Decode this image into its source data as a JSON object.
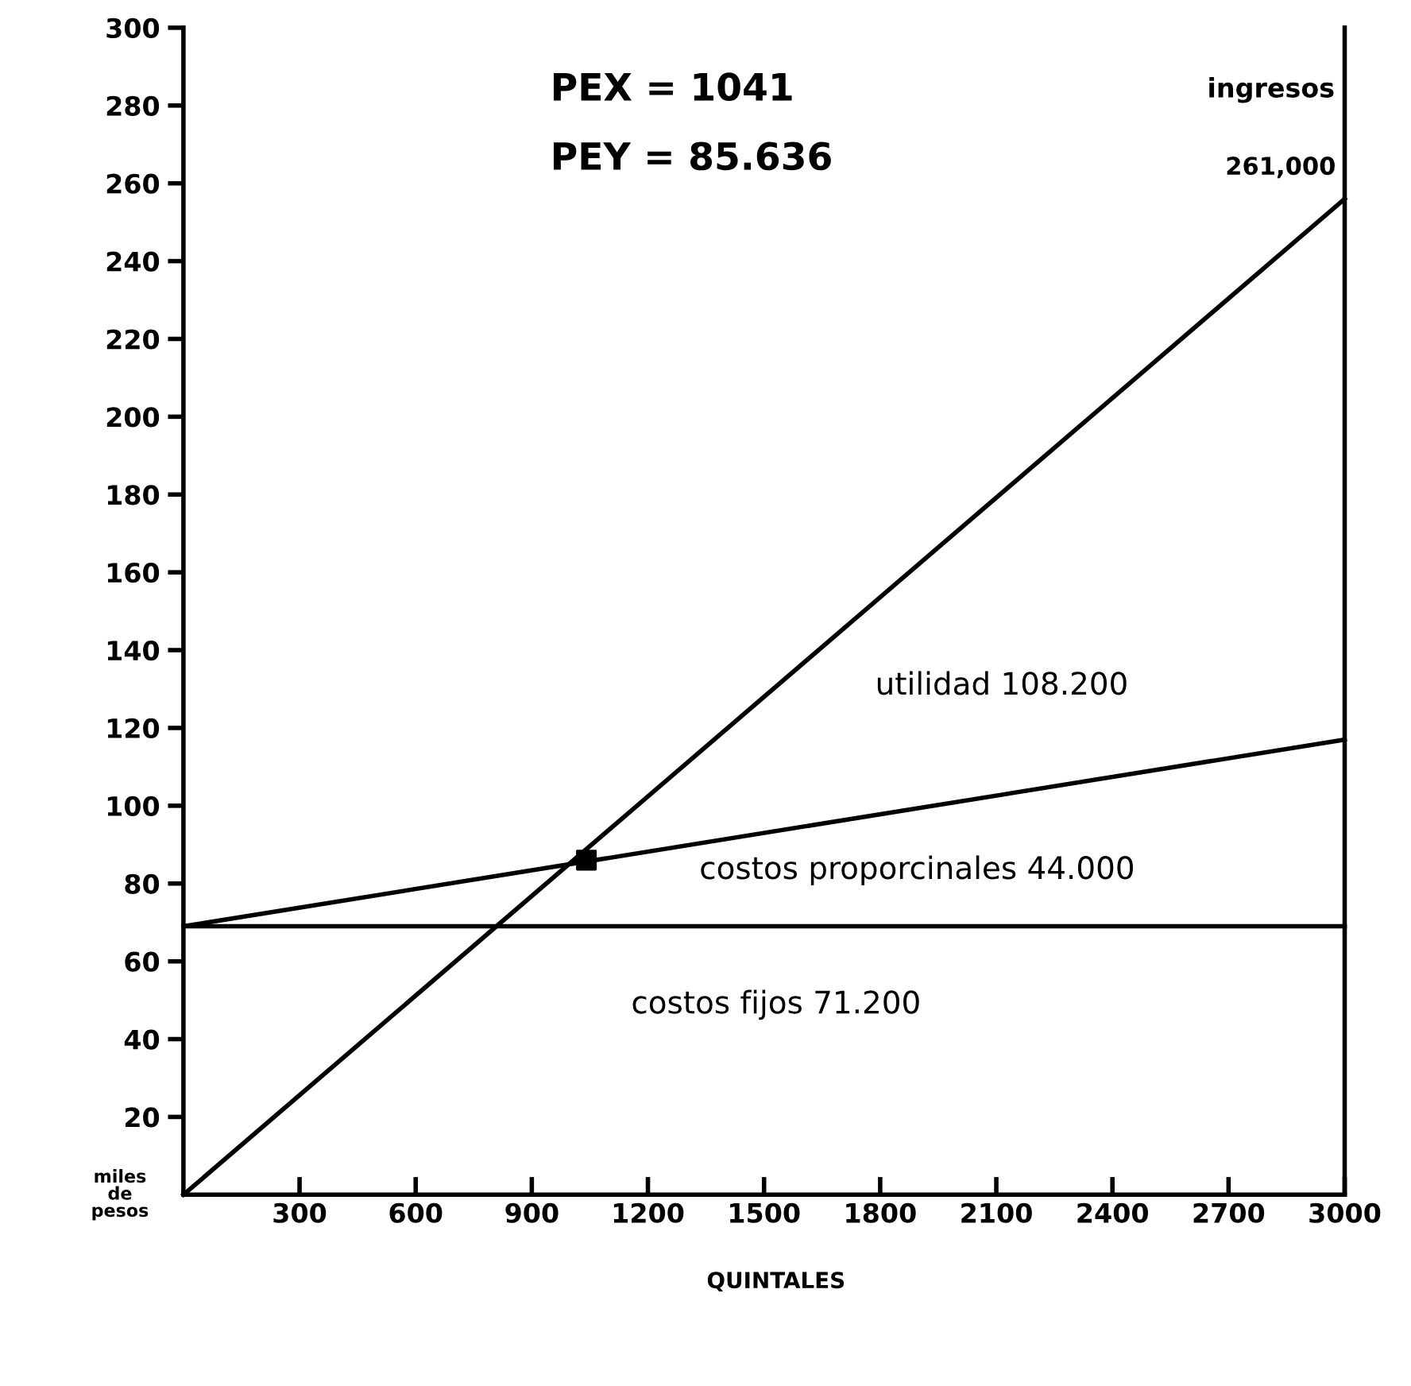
{
  "chart_data": {
    "type": "line",
    "xlabel": "QUINTALES",
    "ylabel": "miles de pesos",
    "xlim": [
      0,
      3000
    ],
    "ylim": [
      0,
      300
    ],
    "xticks": [
      300,
      600,
      900,
      1200,
      1500,
      1800,
      2100,
      2400,
      2700,
      3000
    ],
    "yticks": [
      20,
      40,
      60,
      80,
      100,
      120,
      140,
      160,
      180,
      200,
      220,
      240,
      260,
      280,
      300
    ],
    "grid": false,
    "legend": false,
    "line_style": "solid",
    "series": [
      {
        "color": "#000000",
        "x": [
          0,
          3000
        ],
        "values": [
          69,
          69
        ]
      },
      {
        "color": "#000000",
        "x": [
          0,
          3000
        ],
        "values": [
          69,
          117
        ]
      },
      {
        "color": "#000000",
        "x": [
          0,
          3000
        ],
        "values": [
          0,
          256
        ]
      },
      {
        "type": "scatter",
        "marker": "square",
        "color": "#000000",
        "x": [
          1041
        ],
        "values": [
          86
        ]
      }
    ],
    "annotations": [
      "PEX = 1041",
      "PEY = 85.636",
      "ingresos",
      {
        "text": "261,000",
        "x": 3000,
        "y": 256
      },
      "utilidad 108.200",
      "costos proporcinales 44.000",
      "costos fijos 71.200"
    ],
    "ref_lines": [
      {
        "axis": "x",
        "value": 3000,
        "color": "#000000"
      }
    ]
  }
}
